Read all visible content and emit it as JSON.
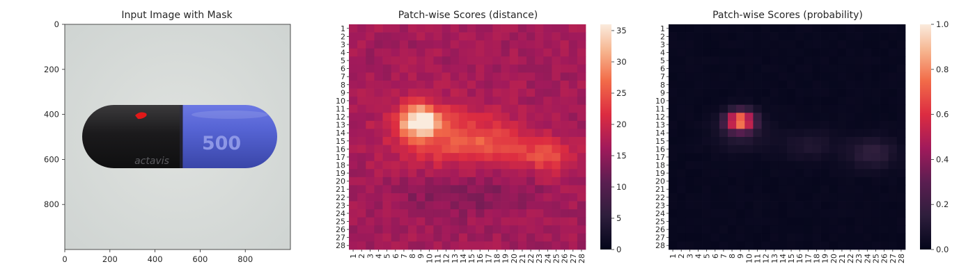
{
  "chart_data": [
    {
      "type": "image",
      "title": "Input Image with Mask",
      "xlim": [
        0,
        1000
      ],
      "ylim": [
        1000,
        0
      ],
      "x_ticks": [
        0,
        200,
        400,
        600,
        800
      ],
      "y_ticks": [
        0,
        200,
        400,
        600,
        800
      ],
      "image_labels": {
        "brand": "actavis",
        "dose": "500"
      },
      "colors": {
        "capsule_cap": "#1c1c1e",
        "capsule_body": "#5865d6",
        "mask": "#e01818",
        "background": "#d8dcd9"
      }
    },
    {
      "type": "heatmap",
      "title": "Patch-wise Scores (distance)",
      "x_ticks": [
        "1",
        "2",
        "3",
        "4",
        "5",
        "6",
        "7",
        "8",
        "9",
        "10",
        "11",
        "12",
        "13",
        "14",
        "15",
        "16",
        "17",
        "18",
        "19",
        "20",
        "21",
        "22",
        "23",
        "24",
        "25",
        "26",
        "27",
        "28"
      ],
      "y_ticks": [
        "1",
        "2",
        "3",
        "4",
        "5",
        "6",
        "7",
        "8",
        "9",
        "10",
        "11",
        "12",
        "13",
        "14",
        "15",
        "16",
        "17",
        "18",
        "19",
        "20",
        "21",
        "22",
        "23",
        "24",
        "25",
        "26",
        "27",
        "28"
      ],
      "colorbar": {
        "min": 0,
        "max": 36,
        "ticks": [
          0,
          5,
          10,
          15,
          20,
          25,
          30,
          35
        ],
        "colormap": "rocket"
      },
      "base": 16.5,
      "hotspots": [
        {
          "row": 12.5,
          "col": 8.8,
          "sx": 1.6,
          "sy": 1.4,
          "amp": 19
        },
        {
          "row": 14.5,
          "col": 11.5,
          "sx": 4.5,
          "sy": 2.8,
          "amp": 7
        },
        {
          "row": 15.2,
          "col": 17.5,
          "sx": 3.0,
          "sy": 1.8,
          "amp": 5.5
        },
        {
          "row": 16.8,
          "col": 24.0,
          "sx": 2.3,
          "sy": 1.6,
          "amp": 8
        },
        {
          "row": 21.5,
          "col": 14.0,
          "sx": 6.0,
          "sy": 2.0,
          "amp": -3
        }
      ]
    },
    {
      "type": "heatmap",
      "title": "Patch-wise Scores (probability)",
      "x_ticks": [
        "1",
        "2",
        "3",
        "4",
        "5",
        "6",
        "7",
        "8",
        "9",
        "10",
        "11",
        "12",
        "13",
        "14",
        "15",
        "16",
        "17",
        "18",
        "19",
        "20",
        "21",
        "22",
        "23",
        "24",
        "25",
        "26",
        "27",
        "28"
      ],
      "y_ticks": [
        "1",
        "2",
        "3",
        "4",
        "5",
        "6",
        "7",
        "8",
        "9",
        "10",
        "11",
        "12",
        "13",
        "14",
        "15",
        "16",
        "17",
        "18",
        "19",
        "20",
        "21",
        "22",
        "23",
        "24",
        "25",
        "26",
        "27",
        "28"
      ],
      "colorbar": {
        "min": 0.0,
        "max": 1.0,
        "ticks": [
          "0.0",
          "0.2",
          "0.4",
          "0.6",
          "0.8",
          "1.0"
        ],
        "colormap": "rocket"
      },
      "base": 0.02,
      "hotspots": [
        {
          "row": 12.5,
          "col": 9.0,
          "sx": 1.1,
          "sy": 0.85,
          "amp": 0.78
        },
        {
          "row": 14.0,
          "col": 9.0,
          "sx": 2.2,
          "sy": 1.6,
          "amp": 0.1
        },
        {
          "row": 16.5,
          "col": 24.5,
          "sx": 2.0,
          "sy": 1.3,
          "amp": 0.14
        },
        {
          "row": 15.5,
          "col": 17.0,
          "sx": 2.2,
          "sy": 1.3,
          "amp": 0.08
        }
      ]
    }
  ]
}
